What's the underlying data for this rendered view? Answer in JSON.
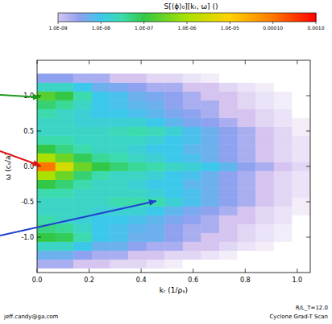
{
  "chart_data": {
    "type": "heatmap",
    "title": "S[⟨ϕ⟩₀][kᵣ, ω] ()",
    "x_label": "kᵣ (1/ρₛ)",
    "y_label": "ω (cₛ/a)",
    "annotations": [
      "jeff.candy@ga.com",
      "R/L_T=12.0",
      "Cyclone Grad-T Scan"
    ],
    "xlim": [
      0,
      1.05
    ],
    "ylim": [
      -1.5,
      1.5
    ],
    "xticks": [
      {
        "value": 0,
        "label": "0.0"
      },
      0.2,
      0.4,
      0.6,
      0.8,
      {
        "value": 1,
        "label": "1.0"
      }
    ],
    "yticks": [
      {
        "value": -1,
        "label": "-1.0"
      },
      -0.5,
      {
        "value": 0,
        "label": "0.0"
      },
      0.5,
      {
        "value": 1,
        "label": "1.0"
      }
    ],
    "x_edges": [
      0,
      0.07,
      0.14,
      0.21,
      0.28,
      0.35,
      0.42,
      0.49,
      0.56,
      0.63,
      0.7,
      0.77,
      0.84,
      0.91,
      0.98,
      1.05
    ],
    "y_edges": [
      -1.4375,
      -1.3125,
      -1.1875,
      -1.0625,
      -0.9375,
      -0.8125,
      -0.6875,
      -0.5625,
      -0.4375,
      -0.3125,
      -0.1875,
      -0.0625,
      0.0625,
      0.1875,
      0.3125,
      0.4375,
      0.5625,
      0.6875,
      0.8125,
      0.9375,
      1.0625,
      1.1875,
      1.3125
    ],
    "z": [
      [
        2e-09,
        2e-09,
        1e-09,
        1e-09,
        5e-10,
        5e-10,
        3e-10,
        2e-10,
        1e-10,
        1e-10,
        1e-10,
        1e-10,
        1e-10,
        1e-10,
        1e-10
      ],
      [
        5e-09,
        5e-09,
        3e-09,
        2e-09,
        2e-09,
        1e-09,
        1e-09,
        5e-10,
        5e-10,
        3e-10,
        2e-10,
        1e-10,
        1e-10,
        1e-10,
        1e-10
      ],
      [
        2e-08,
        2e-08,
        1e-08,
        5e-09,
        5e-09,
        3e-09,
        2e-09,
        2e-09,
        1e-09,
        1e-09,
        5e-10,
        3e-10,
        2e-10,
        1e-10,
        1e-10
      ],
      [
        1e-07,
        8e-08,
        3e-08,
        1e-08,
        8e-09,
        5e-09,
        5e-09,
        3e-09,
        2e-09,
        1e-09,
        1e-09,
        5e-10,
        3e-10,
        2e-10,
        1e-10
      ],
      [
        5e-08,
        4e-08,
        2e-08,
        1e-08,
        8e-09,
        6e-09,
        5e-09,
        3e-09,
        2e-09,
        2e-09,
        1e-09,
        5e-10,
        3e-10,
        2e-10,
        1e-10
      ],
      [
        3e-08,
        2e-08,
        1.5e-08,
        1e-08,
        1e-08,
        8e-09,
        6e-09,
        4e-09,
        3e-09,
        2e-09,
        1e-09,
        1e-09,
        5e-10,
        3e-10,
        1e-10
      ],
      [
        2e-08,
        2e-08,
        2e-08,
        1.5e-08,
        1.5e-08,
        1.5e-08,
        1e-08,
        6e-09,
        4e-09,
        3e-09,
        2e-09,
        1e-09,
        5e-10,
        3e-10,
        2e-10
      ],
      [
        2e-08,
        2e-08,
        2e-08,
        2e-08,
        3e-08,
        3e-08,
        3e-08,
        1.5e-08,
        8e-09,
        5e-09,
        3e-09,
        2e-09,
        1e-09,
        5e-10,
        2e-10
      ],
      [
        3e-08,
        3e-08,
        2e-08,
        2e-08,
        2e-08,
        2e-08,
        1.5e-08,
        1e-08,
        8e-09,
        5e-09,
        3e-09,
        2e-09,
        1e-09,
        5e-10,
        3e-10
      ],
      [
        1e-07,
        6e-08,
        3e-08,
        2e-08,
        2e-08,
        1.5e-08,
        1e-08,
        1e-08,
        6e-09,
        5e-09,
        3e-09,
        2e-09,
        1e-09,
        5e-10,
        3e-10
      ],
      [
        1e-06,
        3e-07,
        6e-08,
        3e-08,
        2e-08,
        2e-08,
        1.5e-08,
        1e-08,
        8e-09,
        5e-09,
        3e-09,
        2e-09,
        1e-09,
        5e-10,
        3e-10
      ],
      [
        0.0001,
        3e-06,
        3e-07,
        1e-07,
        6e-08,
        4e-08,
        3e-08,
        2e-08,
        1.5e-08,
        1e-08,
        6e-09,
        3e-09,
        2e-09,
        1e-09,
        5e-10
      ],
      [
        1e-06,
        3e-07,
        8e-08,
        4e-08,
        3e-08,
        2e-08,
        1.5e-08,
        1e-08,
        8e-09,
        5e-09,
        3e-09,
        2e-09,
        1e-09,
        5e-10,
        3e-10
      ],
      [
        1e-07,
        5e-08,
        3e-08,
        2e-08,
        2e-08,
        1.5e-08,
        1e-08,
        1e-08,
        6e-09,
        5e-09,
        3e-09,
        2e-09,
        1e-09,
        5e-10,
        3e-10
      ],
      [
        3e-08,
        3e-08,
        2e-08,
        2e-08,
        2e-08,
        2e-08,
        1.5e-08,
        1e-08,
        8e-09,
        5e-09,
        3e-09,
        2e-09,
        1e-09,
        5e-10,
        3e-10
      ],
      [
        2e-08,
        2e-08,
        2e-08,
        2e-08,
        2.5e-08,
        3e-08,
        2.5e-08,
        1.5e-08,
        8e-09,
        5e-09,
        3e-09,
        2e-09,
        1e-09,
        5e-10,
        2e-10
      ],
      [
        2e-08,
        2e-08,
        1.5e-08,
        1.5e-08,
        1.5e-08,
        1.5e-08,
        1e-08,
        6e-09,
        4e-09,
        3e-09,
        2e-09,
        1e-09,
        5e-10,
        3e-10,
        2e-10
      ],
      [
        3e-08,
        2e-08,
        1.5e-08,
        1e-08,
        1e-08,
        8e-09,
        6e-09,
        4e-09,
        3e-09,
        2e-09,
        1e-09,
        1e-09,
        5e-10,
        3e-10,
        1e-10
      ],
      [
        6e-08,
        4e-08,
        2e-08,
        1e-08,
        8e-09,
        6e-09,
        5e-09,
        3e-09,
        2e-09,
        2e-09,
        1e-09,
        5e-10,
        3e-10,
        2e-10,
        1e-10
      ],
      [
        2e-07,
        1e-07,
        3e-08,
        1e-08,
        8e-09,
        5e-09,
        4e-09,
        3e-09,
        2e-09,
        1e-09,
        1e-09,
        5e-10,
        3e-10,
        2e-10,
        1e-10
      ],
      [
        2e-08,
        2e-08,
        1e-08,
        5e-09,
        4e-09,
        3e-09,
        2e-09,
        2e-09,
        1e-09,
        1e-09,
        5e-10,
        3e-10,
        2e-10,
        1e-10,
        1e-10
      ],
      [
        3e-09,
        3e-09,
        2e-09,
        2e-09,
        1e-09,
        1e-09,
        5e-10,
        5e-10,
        3e-10,
        2e-10,
        1e-10,
        1e-10,
        1e-10,
        1e-10,
        1e-10
      ]
    ],
    "colorbar_lim": [
      1e-09,
      0.001
    ],
    "colorbar_ticks": [
      {
        "value": 1e-09,
        "label": "1.0E-09"
      },
      {
        "value": 1e-08,
        "label": "1.0E-08"
      },
      {
        "value": 1e-07,
        "label": "1.0E-07"
      },
      {
        "value": 1e-06,
        "label": "1.0E-06"
      },
      {
        "value": 1e-05,
        "label": "1.0E-05"
      },
      {
        "value": 0.0001,
        "label": "0.00010"
      },
      {
        "value": 0.001,
        "label": "0.0010"
      }
    ]
  }
}
